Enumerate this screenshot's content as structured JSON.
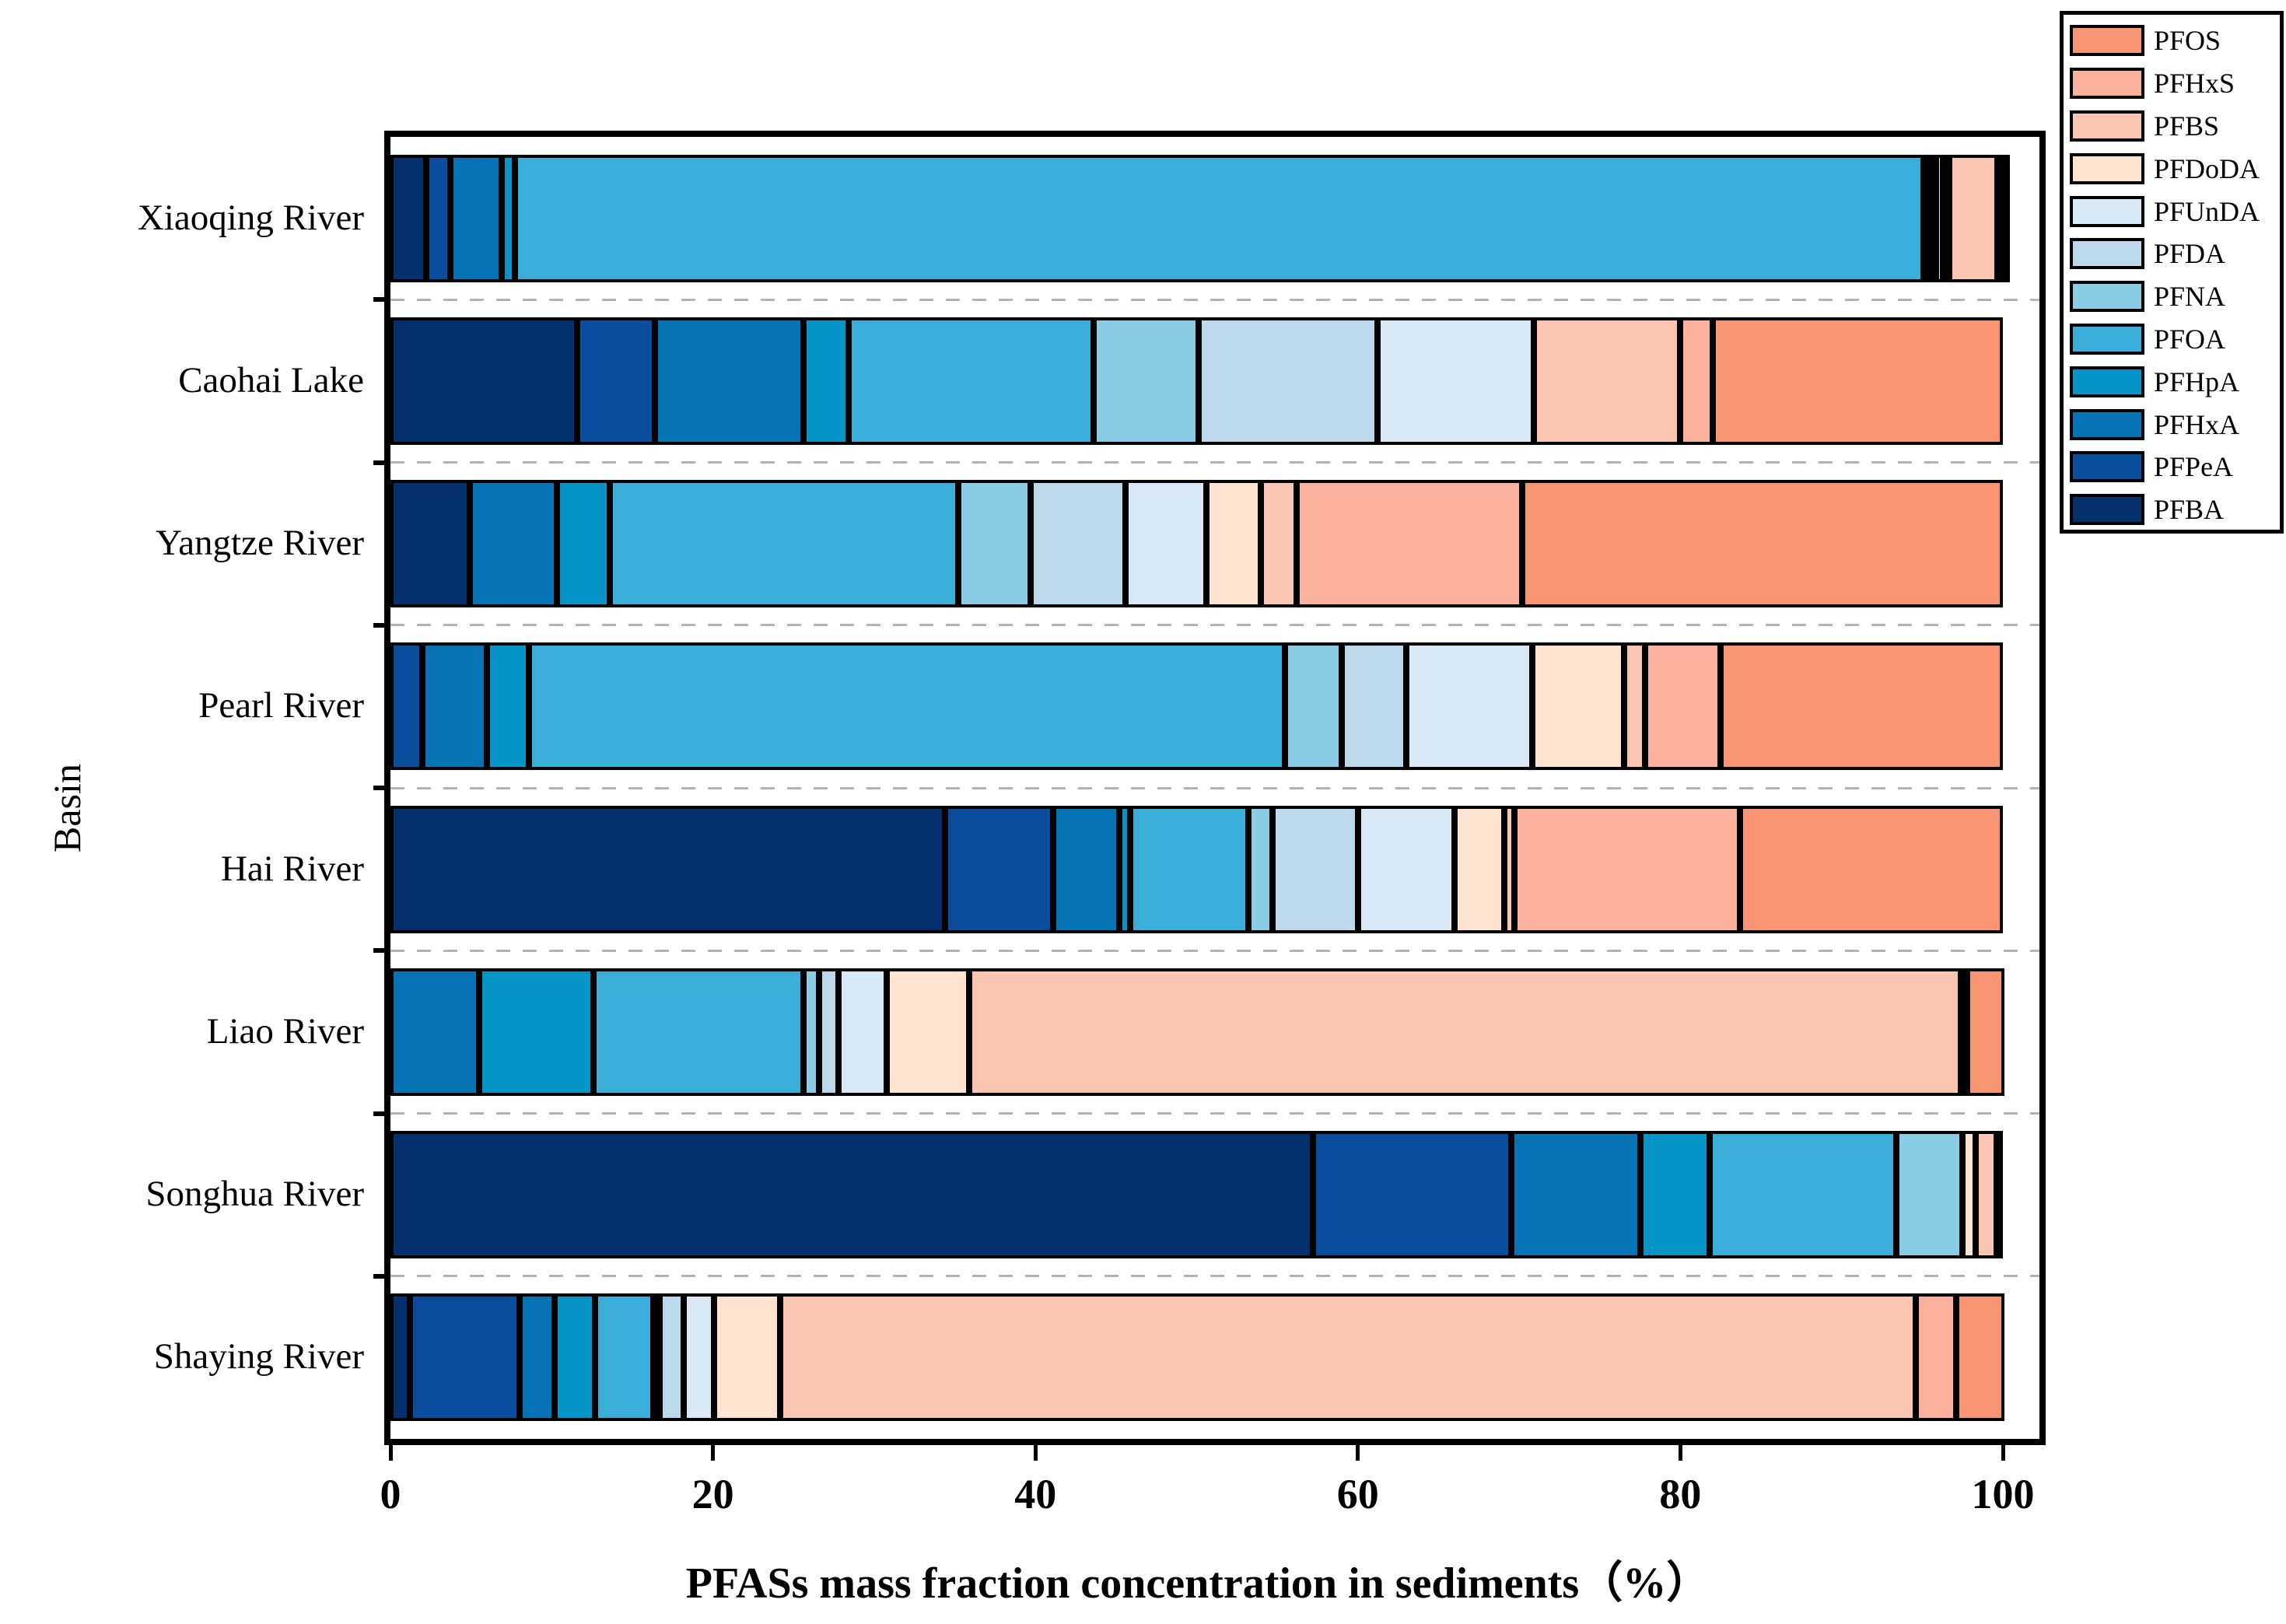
{
  "figure": {
    "xlabel": "PFASs mass fraction concentration in sediments（%）",
    "ylabel": "Basin"
  },
  "axis": {
    "x_tick_labels": [
      "0",
      "20",
      "40",
      "60",
      "80",
      "100"
    ],
    "x_tick_values": [
      0,
      20,
      40,
      60,
      80,
      100
    ]
  },
  "legend": {
    "position": "top-right-outside",
    "items_top_to_bottom": [
      "PFOS",
      "PFHxS",
      "PFBS",
      "PFDoDA",
      "PFUnDA",
      "PFDA",
      "PFNA",
      "PFOA",
      "PFHpA",
      "PFHxA",
      "PFPeA",
      "PFBA"
    ]
  },
  "colors": {
    "PFOS": "#F99572",
    "PFHxS": "#FBB19B",
    "PFBS": "#FBC6B1",
    "PFDoDA": "#FDE4D1",
    "PFUnDA": "#D8E8F4",
    "PFDA": "#BCD8EB",
    "PFNA": "#8ACBE5",
    "PFOA": "#3AAED9",
    "PFHpA": "#0795C8",
    "PFHxA": "#0673B4",
    "PFPeA": "#0A4D9D",
    "PFBA": "#05306E"
  },
  "chart_data": {
    "type": "bar",
    "orientation": "horizontal",
    "stacked": true,
    "title": "",
    "xlabel": "PFASs mass fraction concentration in sediments（%）",
    "ylabel": "Basin",
    "xlim": [
      0,
      100
    ],
    "grid": "dashed gray separators between category rows",
    "categories": [
      "Xiaoqing River",
      "Caohai Lake",
      "Yangtze River",
      "Pearl River",
      "Hai River",
      "Liao River",
      "Songhua River",
      "Shaying River"
    ],
    "stack_order_left_to_right": [
      "PFBA",
      "PFPeA",
      "PFHxA",
      "PFHpA",
      "PFOA",
      "PFNA",
      "PFDA",
      "PFUnDA",
      "PFDoDA",
      "PFBS",
      "PFHxS",
      "PFOS"
    ],
    "series": [
      {
        "name": "PFBA",
        "values": [
          2.2,
          11.6,
          4.9,
          0.0,
          34.4,
          0.0,
          57.2,
          1.2
        ]
      },
      {
        "name": "PFPeA",
        "values": [
          1.5,
          4.8,
          0.0,
          2.0,
          6.7,
          0.0,
          12.3,
          6.8
        ]
      },
      {
        "name": "PFHxA",
        "values": [
          3.2,
          9.2,
          5.4,
          4.0,
          4.1,
          5.5,
          8.0,
          2.2
        ]
      },
      {
        "name": "PFHpA",
        "values": [
          0.8,
          2.8,
          3.3,
          2.6,
          0.7,
          7.1,
          4.3,
          2.5
        ]
      },
      {
        "name": "PFOA",
        "values": [
          87.4,
          15.2,
          21.6,
          46.9,
          7.3,
          13.0,
          11.6,
          3.6
        ]
      },
      {
        "name": "PFNA",
        "values": [
          0.3,
          6.5,
          4.5,
          3.5,
          1.5,
          1.0,
          4.1,
          0.3
        ]
      },
      {
        "name": "PFDA",
        "values": [
          0.3,
          11.1,
          5.9,
          4.0,
          5.3,
          1.2,
          0.0,
          1.5
        ]
      },
      {
        "name": "PFUnDA",
        "values": [
          0.4,
          9.7,
          5.0,
          7.8,
          6.0,
          3.0,
          0.0,
          1.9
        ]
      },
      {
        "name": "PFDoDA",
        "values": [
          0.4,
          0.0,
          3.4,
          5.7,
          3.1,
          5.1,
          0.8,
          4.1
        ]
      },
      {
        "name": "PFBS",
        "values": [
          3.0,
          9.1,
          2.2,
          1.3,
          0.6,
          61.5,
          1.3,
          70.4
        ]
      },
      {
        "name": "PFHxS",
        "values": [
          0.2,
          2.0,
          14.0,
          4.7,
          14.0,
          0.3,
          0.0,
          2.5
        ]
      },
      {
        "name": "PFOS",
        "values": [
          0.3,
          18.0,
          29.8,
          17.5,
          16.3,
          2.3,
          0.4,
          3.0
        ]
      }
    ]
  }
}
